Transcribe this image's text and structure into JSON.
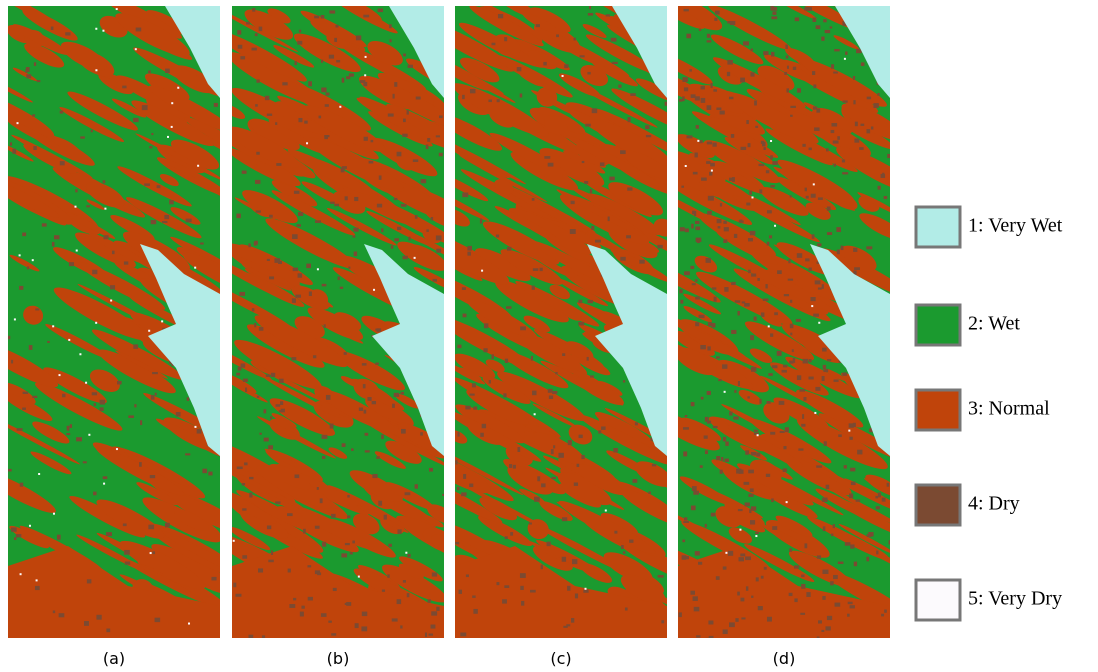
{
  "panels": [
    {
      "label": "(a)"
    },
    {
      "label": "(b)"
    },
    {
      "label": "(c)"
    },
    {
      "label": "(d)"
    }
  ],
  "legend": [
    {
      "label": "1: Very Wet",
      "color": "#b2ece7"
    },
    {
      "label": "2: Wet",
      "color": "#1b9a2f"
    },
    {
      "label": "3: Normal",
      "color": "#c0440b"
    },
    {
      "label": "4: Dry",
      "color": "#7b4a32"
    },
    {
      "label": "5: Very Dry",
      "color": "#fcfafd"
    }
  ]
}
